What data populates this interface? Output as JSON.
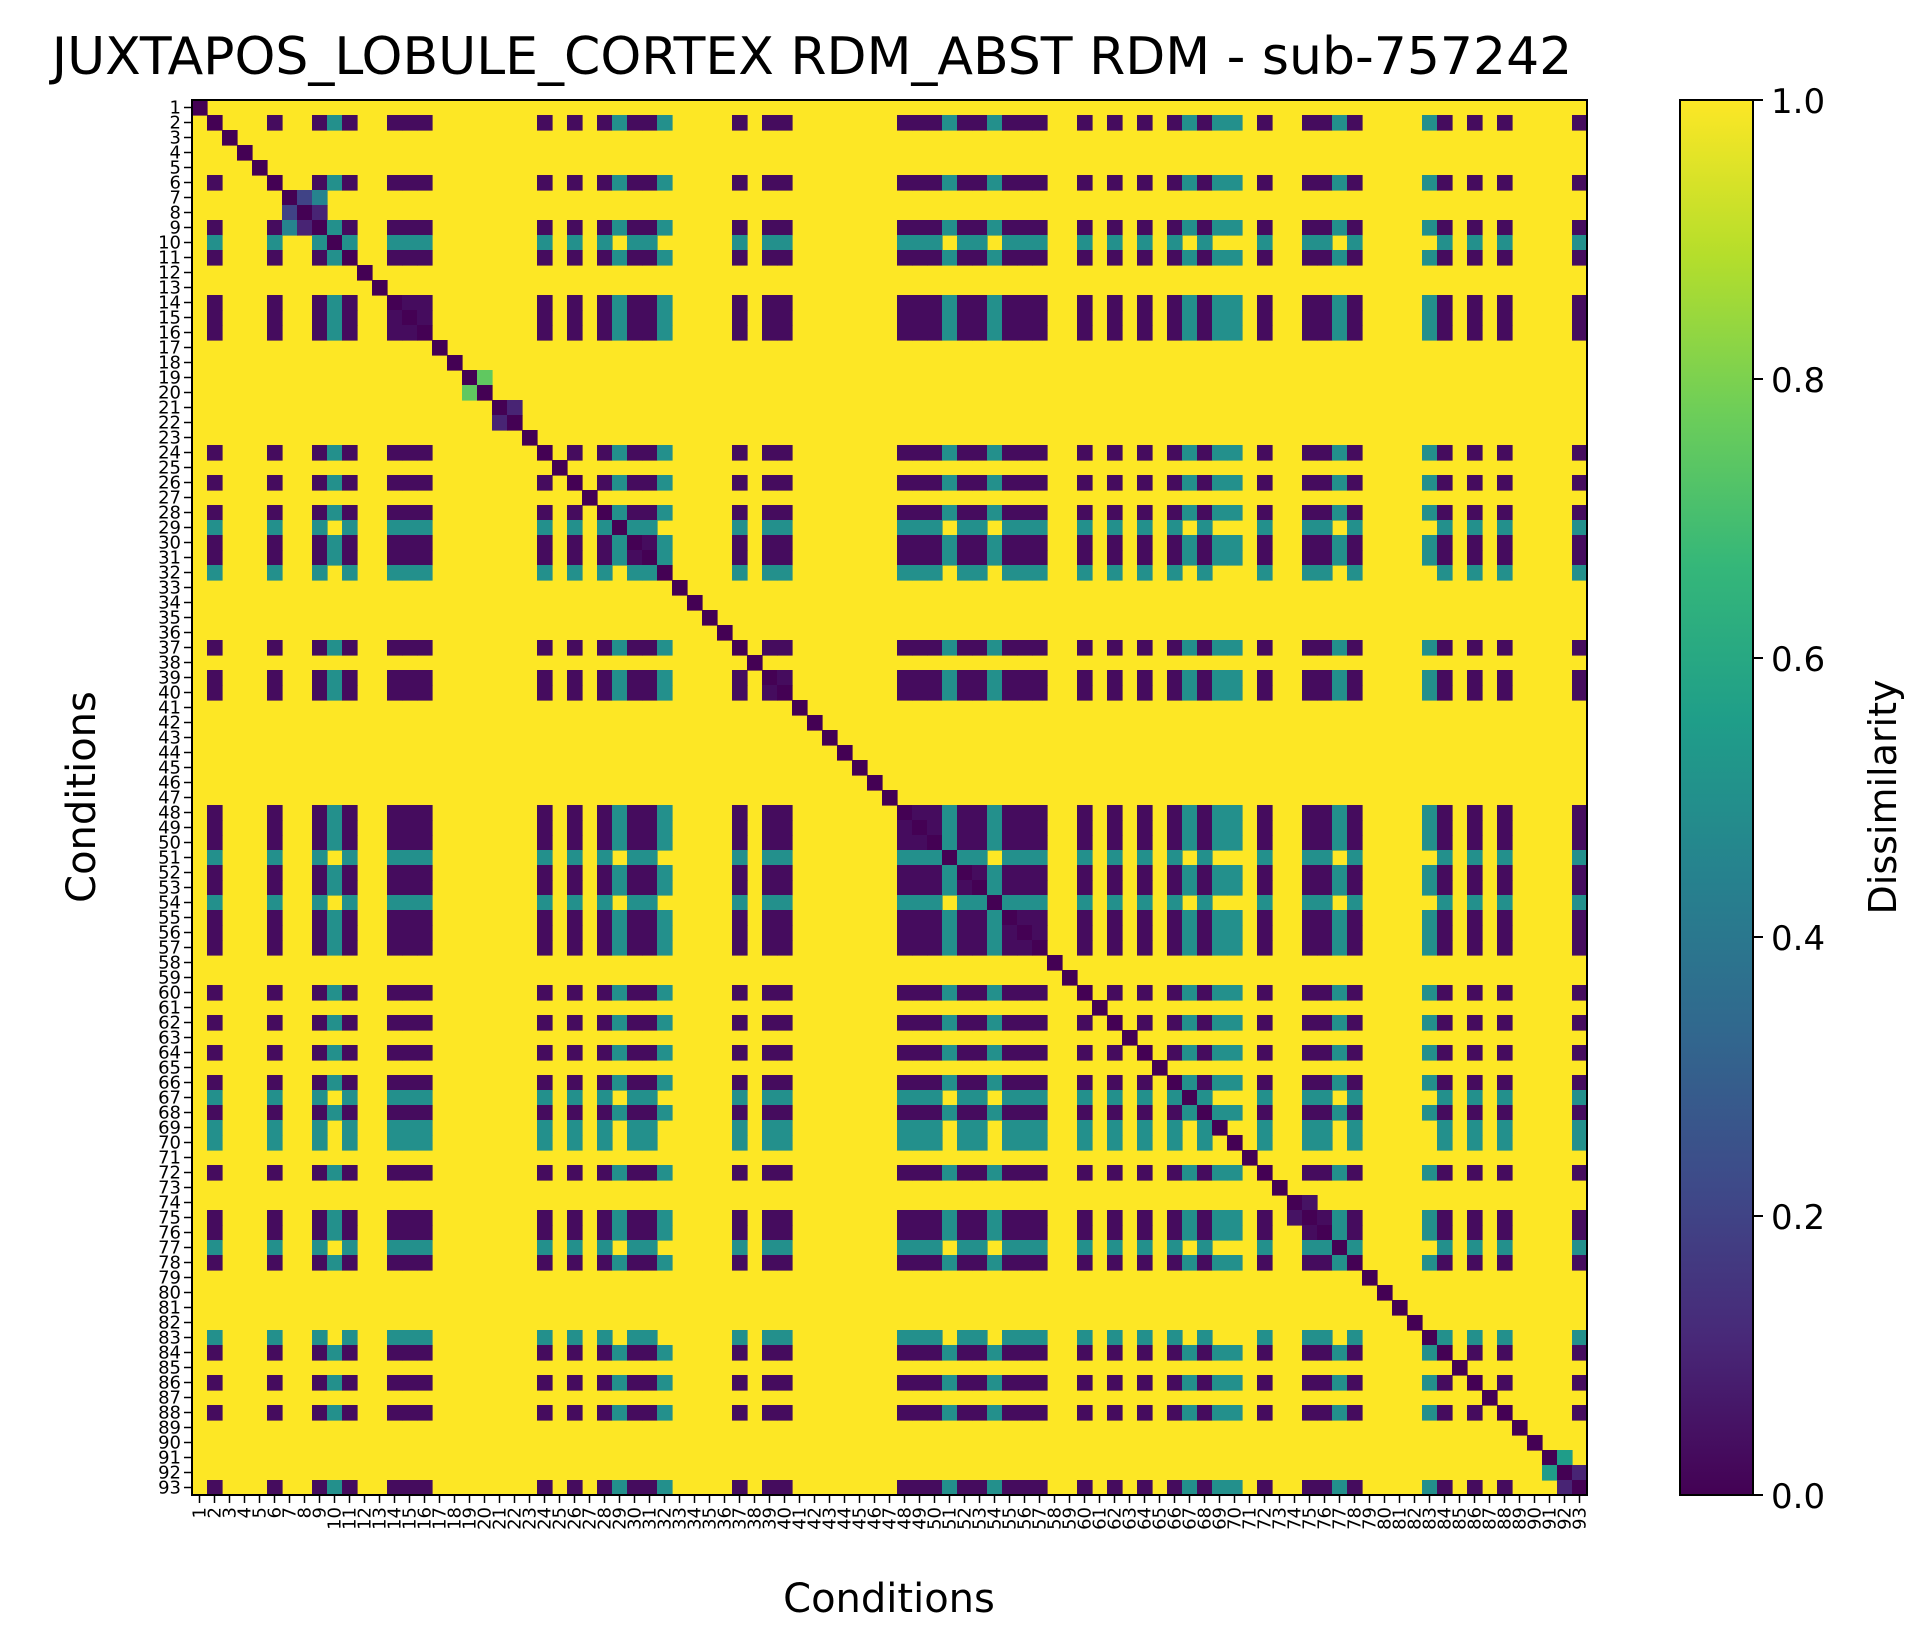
{
  "chart_data": {
    "type": "heatmap",
    "title": "JUXTAPOS_LOBULE_CORTEX RDM_ABST RDM - sub-757242",
    "xlabel": "Conditions",
    "ylabel": "Conditions",
    "n_conditions": 93,
    "x_tick_labels": [
      "1",
      "2",
      "3",
      "4",
      "5",
      "6",
      "7",
      "8",
      "9",
      "10",
      "11",
      "12",
      "13",
      "14",
      "15",
      "16",
      "17",
      "18",
      "19",
      "20",
      "21",
      "22",
      "23",
      "24",
      "25",
      "26",
      "27",
      "28",
      "29",
      "30",
      "31",
      "32",
      "33",
      "34",
      "35",
      "36",
      "37",
      "38",
      "39",
      "40",
      "41",
      "42",
      "43",
      "44",
      "45",
      "46",
      "47",
      "48",
      "49",
      "50",
      "51",
      "52",
      "53",
      "54",
      "55",
      "56",
      "57",
      "58",
      "59",
      "60",
      "61",
      "62",
      "63",
      "64",
      "65",
      "66",
      "67",
      "68",
      "69",
      "70",
      "71",
      "72",
      "73",
      "74",
      "75",
      "76",
      "77",
      "78",
      "79",
      "80",
      "81",
      "82",
      "83",
      "84",
      "85",
      "86",
      "87",
      "88",
      "89",
      "90",
      "91",
      "92",
      "93"
    ],
    "y_tick_labels": [
      "1",
      "2",
      "3",
      "4",
      "5",
      "6",
      "7",
      "8",
      "9",
      "10",
      "11",
      "12",
      "13",
      "14",
      "15",
      "16",
      "17",
      "18",
      "19",
      "20",
      "21",
      "22",
      "23",
      "24",
      "25",
      "26",
      "27",
      "28",
      "29",
      "30",
      "31",
      "32",
      "33",
      "34",
      "35",
      "36",
      "37",
      "38",
      "39",
      "40",
      "41",
      "42",
      "43",
      "44",
      "45",
      "46",
      "47",
      "48",
      "49",
      "50",
      "51",
      "52",
      "53",
      "54",
      "55",
      "56",
      "57",
      "58",
      "59",
      "60",
      "61",
      "62",
      "63",
      "64",
      "65",
      "66",
      "67",
      "68",
      "69",
      "70",
      "71",
      "72",
      "73",
      "74",
      "75",
      "76",
      "77",
      "78",
      "79",
      "80",
      "81",
      "82",
      "83",
      "84",
      "85",
      "86",
      "87",
      "88",
      "89",
      "90",
      "91",
      "92",
      "93"
    ],
    "colormap": "viridis",
    "value_range": [
      0.0,
      1.0
    ],
    "diagonal_value": 0.0,
    "colorbar": {
      "label": "Dissimilarity",
      "ticks": [
        0.0,
        0.2,
        0.4,
        0.6,
        0.8,
        1.0
      ],
      "tick_labels": [
        "0.0",
        "0.2",
        "0.4",
        "0.6",
        "0.8",
        "1.0"
      ]
    },
    "cell_values": {
      "background": 1.0,
      "low_group_members": [
        2,
        6,
        9,
        11,
        14,
        15,
        16,
        24,
        26,
        28,
        30,
        31,
        37,
        39,
        40,
        48,
        49,
        50,
        52,
        53,
        55,
        56,
        57,
        60,
        62,
        64,
        66,
        68,
        72,
        75,
        76,
        78,
        84,
        86,
        88,
        93
      ],
      "low_group_value": 0.03,
      "mid_group_members": [
        10,
        29,
        32,
        51,
        54,
        67,
        69,
        70,
        77,
        83
      ],
      "mid_group_value": 0.5,
      "pair_values": [
        {
          "pair": [
            7,
            8
          ],
          "value": 0.2
        },
        {
          "pair": [
            7,
            9
          ],
          "value": 0.45
        },
        {
          "pair": [
            8,
            9
          ],
          "value": 0.1
        },
        {
          "pair": [
            19,
            20
          ],
          "value": 0.75
        },
        {
          "pair": [
            21,
            22
          ],
          "value": 0.1
        },
        {
          "pair": [
            74,
            75
          ],
          "value": 0.05
        },
        {
          "pair": [
            91,
            92
          ],
          "value": 0.55
        },
        {
          "pair": [
            92,
            93
          ],
          "value": 0.1
        }
      ]
    }
  },
  "palette": {
    "viridis_stops": [
      "#440154",
      "#482878",
      "#3e4a89",
      "#31688e",
      "#26828e",
      "#1f9e89",
      "#35b779",
      "#6ece58",
      "#b5de2b",
      "#fde725"
    ],
    "axis_color": "#000000",
    "background": "#ffffff"
  }
}
